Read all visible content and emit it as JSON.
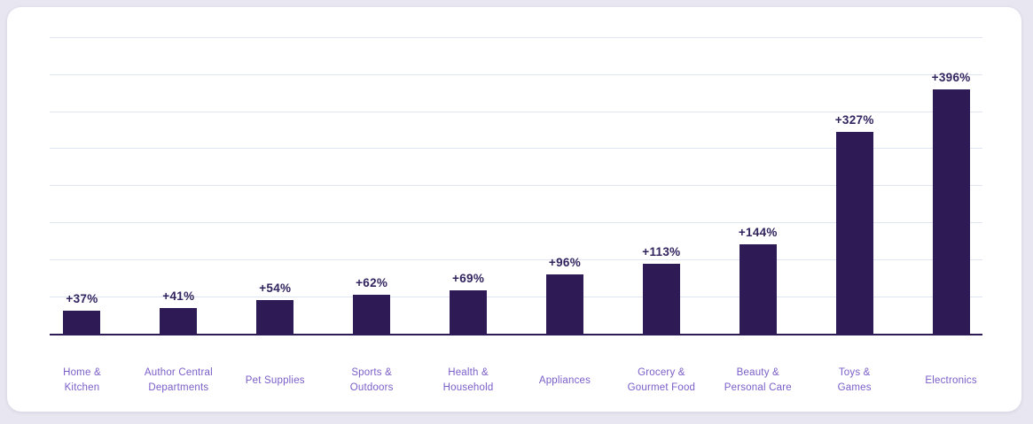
{
  "page": {
    "background_color": "#e8e6f0",
    "card_background_color": "#ffffff"
  },
  "chart_data": {
    "type": "bar",
    "title": "",
    "xlabel": "",
    "ylabel": "",
    "categories": [
      "Home & Kitchen",
      "Author Central Departments",
      "Pet Supplies",
      "Sports & Outdoors",
      "Health & Household",
      "Appliances",
      "Grocery & Gourmet Food",
      "Beauty & Personal Care",
      "Toys & Games",
      "Electronics"
    ],
    "category_lines": [
      [
        "Home &",
        "Kitchen"
      ],
      [
        "Author Central",
        "Departments"
      ],
      [
        "Pet Supplies"
      ],
      [
        "Sports &",
        "Outdoors"
      ],
      [
        "Health &",
        "Household"
      ],
      [
        "Appliances"
      ],
      [
        "Grocery &",
        "Gourmet Food"
      ],
      [
        "Beauty &",
        "Personal Care"
      ],
      [
        "Toys &",
        "Games"
      ],
      [
        "Electronics"
      ]
    ],
    "values": [
      37,
      41,
      54,
      62,
      69,
      96,
      113,
      144,
      327,
      396
    ],
    "value_labels": [
      "+37%",
      "+41%",
      "+54%",
      "+62%",
      "+69%",
      "+96%",
      "+113%",
      "+144%",
      "+327%",
      "+396%"
    ],
    "ylim": [
      0,
      480
    ],
    "gridline_interval": 60,
    "grid": true,
    "legend": false,
    "y_axis_tick_labels_visible": false,
    "colors": {
      "bar": "#2e1a54",
      "value_label": "#32245f",
      "category_label": "#7a5ec8",
      "gridline": "#dfe6f2",
      "axis": "#2e1a54"
    }
  }
}
